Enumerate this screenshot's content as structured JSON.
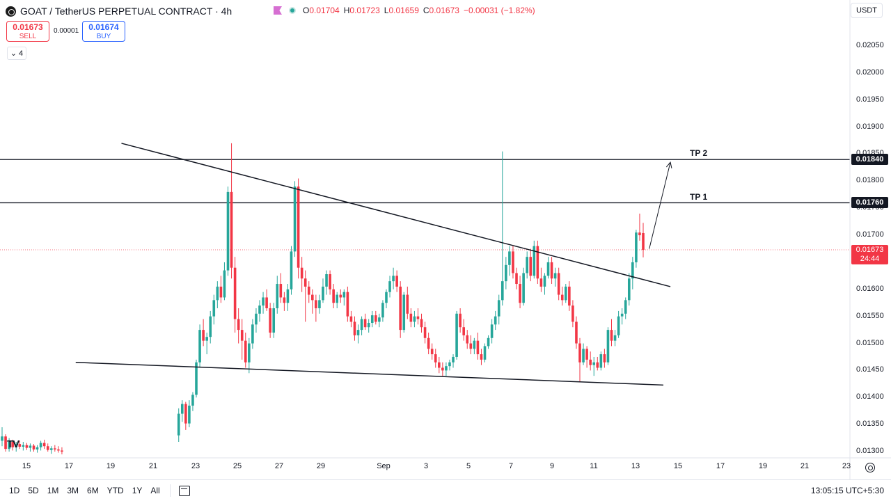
{
  "header": {
    "symbol_title": "GOAT / TetherUS PERPETUAL CONTRACT · 4h",
    "ohlc": {
      "o_key": "O",
      "o_val": "0.01704",
      "h_key": "H",
      "h_val": "0.01723",
      "l_key": "L",
      "l_val": "0.01659",
      "c_key": "C",
      "c_val": "0.01673",
      "change": "−0.00031 (−1.82%)"
    }
  },
  "trade": {
    "sell_price": "0.01673",
    "sell_label": "SELL",
    "spread": "0.00001",
    "buy_price": "0.01674",
    "buy_label": "BUY"
  },
  "indicators_toggle": {
    "icon": "chevron-down-icon",
    "count": "4"
  },
  "currency": "USDT",
  "bottom_bar": {
    "ranges": [
      "1D",
      "5D",
      "1M",
      "3M",
      "6M",
      "YTD",
      "1Y",
      "All"
    ],
    "clock": "13:05:15 UTC+5:30"
  },
  "colors": {
    "up": "#26a69a",
    "down": "#f23645",
    "line": "#131722"
  },
  "chart_data": {
    "type": "candlestick",
    "timeframe": "4h",
    "y_axis": {
      "ticks": [
        "0.02050",
        "0.02000",
        "0.01950",
        "0.01900",
        "0.01850",
        "0.01800",
        "0.01750",
        "0.01700",
        "0.01650",
        "0.01600",
        "0.01550",
        "0.01500",
        "0.01450",
        "0.01400",
        "0.01350",
        "0.01300"
      ],
      "range": [
        0.0129,
        0.0208
      ]
    },
    "x_axis": {
      "ticks": [
        "15",
        "17",
        "19",
        "21",
        "23",
        "25",
        "27",
        "29",
        "Sep",
        "3",
        "5",
        "7",
        "9",
        "11",
        "13",
        "15",
        "17",
        "19",
        "21",
        "23"
      ]
    },
    "horizontal_levels": [
      {
        "name": "TP 2",
        "price": 0.0184,
        "badge": "0.01840"
      },
      {
        "name": "TP 1",
        "price": 0.0176,
        "badge": "0.01760"
      }
    ],
    "last_price": {
      "value": 0.01673,
      "label": "0.01673",
      "countdown": "24:44"
    },
    "trendlines": [
      {
        "role": "upper",
        "from": {
          "x": "Aug 19 12:00",
          "y": 0.0187
        },
        "to": {
          "x": "Sep 14 12:00",
          "y": 0.01605
        }
      },
      {
        "role": "lower",
        "from": {
          "x": "Aug 17 08:00",
          "y": 0.01465
        },
        "to": {
          "x": "Sep 14 04:00",
          "y": 0.01423
        }
      }
    ],
    "projection_arrow": {
      "from": {
        "x": "Sep 13 12:00",
        "y": 0.01675
      },
      "to": {
        "x": "Sep 14 12:00",
        "y": 0.01835
      }
    },
    "candle_interval_days": 0.16667,
    "candles": [
      [
        0.0132,
        0.01345,
        0.0131,
        0.01328
      ],
      [
        0.01328,
        0.01332,
        0.013,
        0.01305
      ],
      [
        0.01305,
        0.01325,
        0.013,
        0.01318
      ],
      [
        0.01318,
        0.01322,
        0.01302,
        0.01308
      ],
      [
        0.01308,
        0.01318,
        0.013,
        0.01314
      ],
      [
        0.01314,
        0.0132,
        0.01305,
        0.01309
      ],
      [
        0.01309,
        0.01318,
        0.01302,
        0.01312
      ],
      [
        0.01312,
        0.01316,
        0.01303,
        0.01307
      ],
      [
        0.01307,
        0.01315,
        0.013,
        0.01311
      ],
      [
        0.01311,
        0.01314,
        0.013,
        0.01304
      ],
      [
        0.01304,
        0.01312,
        0.01298,
        0.01308
      ],
      [
        0.01308,
        0.0132,
        0.01302,
        0.01316
      ],
      [
        0.01316,
        0.01322,
        0.01305,
        0.0131
      ],
      [
        0.0131,
        0.01315,
        0.013,
        0.01303
      ],
      [
        0.01303,
        0.0131,
        0.01296,
        0.01306
      ],
      [
        0.01306,
        0.01312,
        0.013,
        0.01304
      ],
      [
        0.01304,
        0.0131,
        0.01298,
        0.01302
      ],
      [
        0.01302,
        0.01308,
        0.01295,
        0.013
      ],
      [
        0.0133,
        0.0138,
        0.01318,
        0.0137
      ],
      [
        0.0137,
        0.01395,
        0.01355,
        0.01388
      ],
      [
        0.01388,
        0.01392,
        0.0134,
        0.01352
      ],
      [
        0.01352,
        0.01395,
        0.01345,
        0.01385
      ],
      [
        0.01385,
        0.0141,
        0.01375,
        0.01405
      ],
      [
        0.01405,
        0.0147,
        0.014,
        0.01465
      ],
      [
        0.01465,
        0.01535,
        0.01455,
        0.01525
      ],
      [
        0.01525,
        0.01545,
        0.01495,
        0.01505
      ],
      [
        0.01505,
        0.0152,
        0.0148,
        0.01512
      ],
      [
        0.01512,
        0.0156,
        0.015,
        0.0155
      ],
      [
        0.0155,
        0.0159,
        0.01535,
        0.0158
      ],
      [
        0.0158,
        0.01615,
        0.01565,
        0.01605
      ],
      [
        0.01605,
        0.01625,
        0.01575,
        0.01585
      ],
      [
        0.01585,
        0.0165,
        0.0158,
        0.01635
      ],
      [
        0.01635,
        0.0179,
        0.01625,
        0.0178
      ],
      [
        0.0178,
        0.0187,
        0.0162,
        0.0164
      ],
      [
        0.0164,
        0.0166,
        0.0152,
        0.01545
      ],
      [
        0.01545,
        0.01565,
        0.015,
        0.01525
      ],
      [
        0.01525,
        0.01545,
        0.0147,
        0.01505
      ],
      [
        0.01505,
        0.0152,
        0.01455,
        0.01465
      ],
      [
        0.01465,
        0.0151,
        0.01445,
        0.015
      ],
      [
        0.015,
        0.01545,
        0.0149,
        0.01535
      ],
      [
        0.01535,
        0.01565,
        0.0152,
        0.01555
      ],
      [
        0.01555,
        0.0158,
        0.0154,
        0.0157
      ],
      [
        0.0157,
        0.01595,
        0.01555,
        0.01585
      ],
      [
        0.01585,
        0.016,
        0.0156,
        0.01565
      ],
      [
        0.01565,
        0.01575,
        0.0151,
        0.0152
      ],
      [
        0.0152,
        0.01575,
        0.0151,
        0.01565
      ],
      [
        0.01565,
        0.01625,
        0.01555,
        0.0161
      ],
      [
        0.0161,
        0.0163,
        0.01575,
        0.01585
      ],
      [
        0.01585,
        0.01595,
        0.0156,
        0.01575
      ],
      [
        0.01575,
        0.0161,
        0.0156,
        0.016
      ],
      [
        0.016,
        0.0168,
        0.0159,
        0.0167
      ],
      [
        0.0167,
        0.018,
        0.0166,
        0.0179
      ],
      [
        0.0179,
        0.01805,
        0.0162,
        0.0164
      ],
      [
        0.0164,
        0.0166,
        0.01595,
        0.0162
      ],
      [
        0.0162,
        0.01635,
        0.0154,
        0.01605
      ],
      [
        0.01605,
        0.01615,
        0.01575,
        0.0159
      ],
      [
        0.0159,
        0.016,
        0.01555,
        0.0158
      ],
      [
        0.0158,
        0.0159,
        0.0154,
        0.01565
      ],
      [
        0.01565,
        0.0159,
        0.01555,
        0.0158
      ],
      [
        0.0158,
        0.0162,
        0.01575,
        0.01605
      ],
      [
        0.01605,
        0.01635,
        0.0159,
        0.01628
      ],
      [
        0.01628,
        0.01635,
        0.0159,
        0.016
      ],
      [
        0.016,
        0.0161,
        0.01565,
        0.01575
      ],
      [
        0.01575,
        0.01595,
        0.01565,
        0.0159
      ],
      [
        0.0159,
        0.016,
        0.01575,
        0.01585
      ],
      [
        0.01585,
        0.016,
        0.0157,
        0.01595
      ],
      [
        0.01595,
        0.01605,
        0.0154,
        0.0155
      ],
      [
        0.0155,
        0.0156,
        0.0153,
        0.0154
      ],
      [
        0.0154,
        0.0155,
        0.01505,
        0.01515
      ],
      [
        0.01515,
        0.01535,
        0.015,
        0.01525
      ],
      [
        0.01525,
        0.0155,
        0.01515,
        0.01545
      ],
      [
        0.01545,
        0.01555,
        0.01525,
        0.0153
      ],
      [
        0.0153,
        0.01545,
        0.0152,
        0.01538
      ],
      [
        0.01538,
        0.0156,
        0.0153,
        0.01552
      ],
      [
        0.01552,
        0.0156,
        0.01535,
        0.0154
      ],
      [
        0.0154,
        0.01555,
        0.0153,
        0.01548
      ],
      [
        0.01548,
        0.0158,
        0.0154,
        0.01575
      ],
      [
        0.01575,
        0.016,
        0.01565,
        0.01595
      ],
      [
        0.01595,
        0.01625,
        0.01585,
        0.01615
      ],
      [
        0.01615,
        0.0164,
        0.016,
        0.01625
      ],
      [
        0.01625,
        0.01635,
        0.01595,
        0.01605
      ],
      [
        0.01605,
        0.01615,
        0.0151,
        0.01525
      ],
      [
        0.01525,
        0.01595,
        0.0152,
        0.0159
      ],
      [
        0.0159,
        0.01605,
        0.01545,
        0.01555
      ],
      [
        0.01555,
        0.01565,
        0.0153,
        0.0154
      ],
      [
        0.0154,
        0.0156,
        0.0153,
        0.0155
      ],
      [
        0.0155,
        0.01565,
        0.01535,
        0.01545
      ],
      [
        0.01545,
        0.01555,
        0.0152,
        0.0153
      ],
      [
        0.0153,
        0.0154,
        0.015,
        0.0151
      ],
      [
        0.0151,
        0.0152,
        0.0148,
        0.0149
      ],
      [
        0.0149,
        0.015,
        0.0147,
        0.0148
      ],
      [
        0.0148,
        0.0149,
        0.01455,
        0.01465
      ],
      [
        0.01465,
        0.01475,
        0.01445,
        0.01455
      ],
      [
        0.01455,
        0.01465,
        0.0144,
        0.0145
      ],
      [
        0.0145,
        0.01465,
        0.0144,
        0.01458
      ],
      [
        0.01458,
        0.0147,
        0.0145,
        0.01465
      ],
      [
        0.01465,
        0.0148,
        0.01455,
        0.01475
      ],
      [
        0.01475,
        0.0156,
        0.0147,
        0.01555
      ],
      [
        0.01555,
        0.01565,
        0.0152,
        0.0153
      ],
      [
        0.0153,
        0.01545,
        0.01505,
        0.01515
      ],
      [
        0.01515,
        0.01525,
        0.0149,
        0.015
      ],
      [
        0.015,
        0.01515,
        0.0148,
        0.0149
      ],
      [
        0.0149,
        0.0151,
        0.0148,
        0.01505
      ],
      [
        0.01505,
        0.0152,
        0.0147,
        0.0148
      ],
      [
        0.0148,
        0.0149,
        0.0146,
        0.0147
      ],
      [
        0.0147,
        0.015,
        0.01465,
        0.01495
      ],
      [
        0.01495,
        0.01515,
        0.0149,
        0.0151
      ],
      [
        0.0151,
        0.01545,
        0.015,
        0.01535
      ],
      [
        0.01535,
        0.0156,
        0.01525,
        0.0155
      ],
      [
        0.0155,
        0.0159,
        0.01535,
        0.0158
      ],
      [
        0.0158,
        0.01855,
        0.0157,
        0.01615
      ],
      [
        0.01615,
        0.0166,
        0.016,
        0.01645
      ],
      [
        0.01645,
        0.0168,
        0.01625,
        0.0167
      ],
      [
        0.0167,
        0.0168,
        0.0162,
        0.0163
      ],
      [
        0.0163,
        0.0164,
        0.016,
        0.0161
      ],
      [
        0.0161,
        0.01625,
        0.01565,
        0.01575
      ],
      [
        0.01575,
        0.0164,
        0.0157,
        0.0163
      ],
      [
        0.0163,
        0.0167,
        0.0162,
        0.0166
      ],
      [
        0.0166,
        0.01675,
        0.01615,
        0.01625
      ],
      [
        0.01625,
        0.0169,
        0.0162,
        0.0168
      ],
      [
        0.0168,
        0.0169,
        0.0161,
        0.0162
      ],
      [
        0.0162,
        0.0164,
        0.01595,
        0.01605
      ],
      [
        0.01605,
        0.0163,
        0.0159,
        0.01625
      ],
      [
        0.01625,
        0.0166,
        0.0162,
        0.0165
      ],
      [
        0.0165,
        0.0166,
        0.0161,
        0.0162
      ],
      [
        0.0162,
        0.0164,
        0.01605,
        0.0163
      ],
      [
        0.0163,
        0.0164,
        0.0158,
        0.0159
      ],
      [
        0.0159,
        0.01605,
        0.0157,
        0.0158
      ],
      [
        0.0158,
        0.0161,
        0.01575,
        0.01605
      ],
      [
        0.01605,
        0.01615,
        0.0156,
        0.0157
      ],
      [
        0.0157,
        0.0158,
        0.0153,
        0.0154
      ],
      [
        0.0154,
        0.0155,
        0.0149,
        0.015
      ],
      [
        0.015,
        0.0151,
        0.0143,
        0.01465
      ],
      [
        0.01465,
        0.015,
        0.0146,
        0.0149
      ],
      [
        0.0149,
        0.01495,
        0.01455,
        0.0147
      ],
      [
        0.0147,
        0.01485,
        0.0145,
        0.0146
      ],
      [
        0.0146,
        0.01475,
        0.0144,
        0.01465
      ],
      [
        0.01465,
        0.01475,
        0.0145,
        0.01455
      ],
      [
        0.01455,
        0.01485,
        0.0145,
        0.0148
      ],
      [
        0.0148,
        0.0149,
        0.01455,
        0.01465
      ],
      [
        0.01465,
        0.0153,
        0.0146,
        0.01525
      ],
      [
        0.01525,
        0.01545,
        0.01495,
        0.01505
      ],
      [
        0.01505,
        0.01525,
        0.01495,
        0.01515
      ],
      [
        0.01515,
        0.0156,
        0.0151,
        0.0155
      ],
      [
        0.0155,
        0.01565,
        0.01535,
        0.01555
      ],
      [
        0.01555,
        0.01585,
        0.01545,
        0.0158
      ],
      [
        0.0158,
        0.0163,
        0.0157,
        0.0162
      ],
      [
        0.0162,
        0.0166,
        0.016,
        0.0165
      ],
      [
        0.0165,
        0.0171,
        0.0164,
        0.01705
      ],
      [
        0.01705,
        0.0174,
        0.0169,
        0.017
      ],
      [
        0.01704,
        0.01723,
        0.01659,
        0.01673
      ]
    ]
  }
}
